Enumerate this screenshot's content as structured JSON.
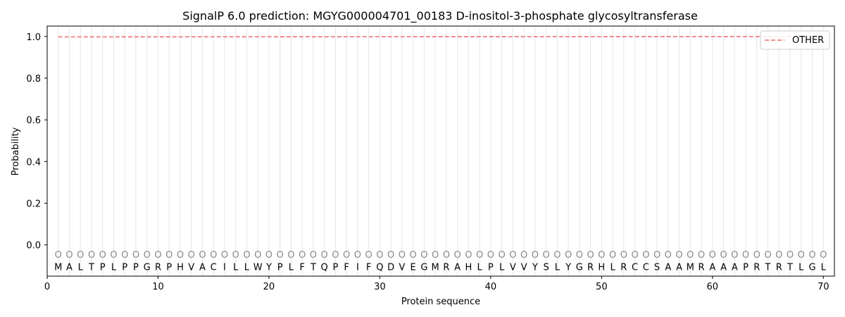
{
  "chart_data": {
    "type": "line",
    "title": "SignalP 6.0 prediction: MGYG000004701_00183 D-inositol-3-phosphate glycosyltransferase",
    "xlabel": "Protein sequence",
    "ylabel": "Probability",
    "xlim": [
      0,
      71
    ],
    "ylim": [
      -0.15,
      1.05
    ],
    "x_ticks": [
      0,
      10,
      20,
      30,
      40,
      50,
      60,
      70
    ],
    "y_ticks": [
      0.0,
      0.2,
      0.4,
      0.6,
      0.8,
      1.0
    ],
    "grid": "vertical lines at each residue",
    "legend": {
      "position": "top-right",
      "entries": [
        "OTHER"
      ]
    },
    "sequence": [
      "M",
      "A",
      "L",
      "T",
      "P",
      "L",
      "P",
      "P",
      "G",
      "R",
      "P",
      "H",
      "V",
      "A",
      "C",
      "I",
      "L",
      "L",
      "W",
      "Y",
      "P",
      "L",
      "F",
      "T",
      "Q",
      "P",
      "F",
      "I",
      "F",
      "Q",
      "D",
      "V",
      "E",
      "G",
      "M",
      "R",
      "A",
      "H",
      "L",
      "P",
      "L",
      "V",
      "V",
      "Y",
      "S",
      "L",
      "Y",
      "G",
      "R",
      "H",
      "L",
      "R",
      "C",
      "C",
      "S",
      "A",
      "A",
      "M",
      "R",
      "A",
      "A",
      "A",
      "P",
      "R",
      "T",
      "R",
      "T",
      "L",
      "G",
      "L"
    ],
    "predicted_state": "O",
    "series": [
      {
        "name": "OTHER",
        "color": "#f08080",
        "style": "dashed",
        "x_start": 1,
        "x_end": 70,
        "values_start": 0.998,
        "values_end": 1.0
      }
    ]
  }
}
